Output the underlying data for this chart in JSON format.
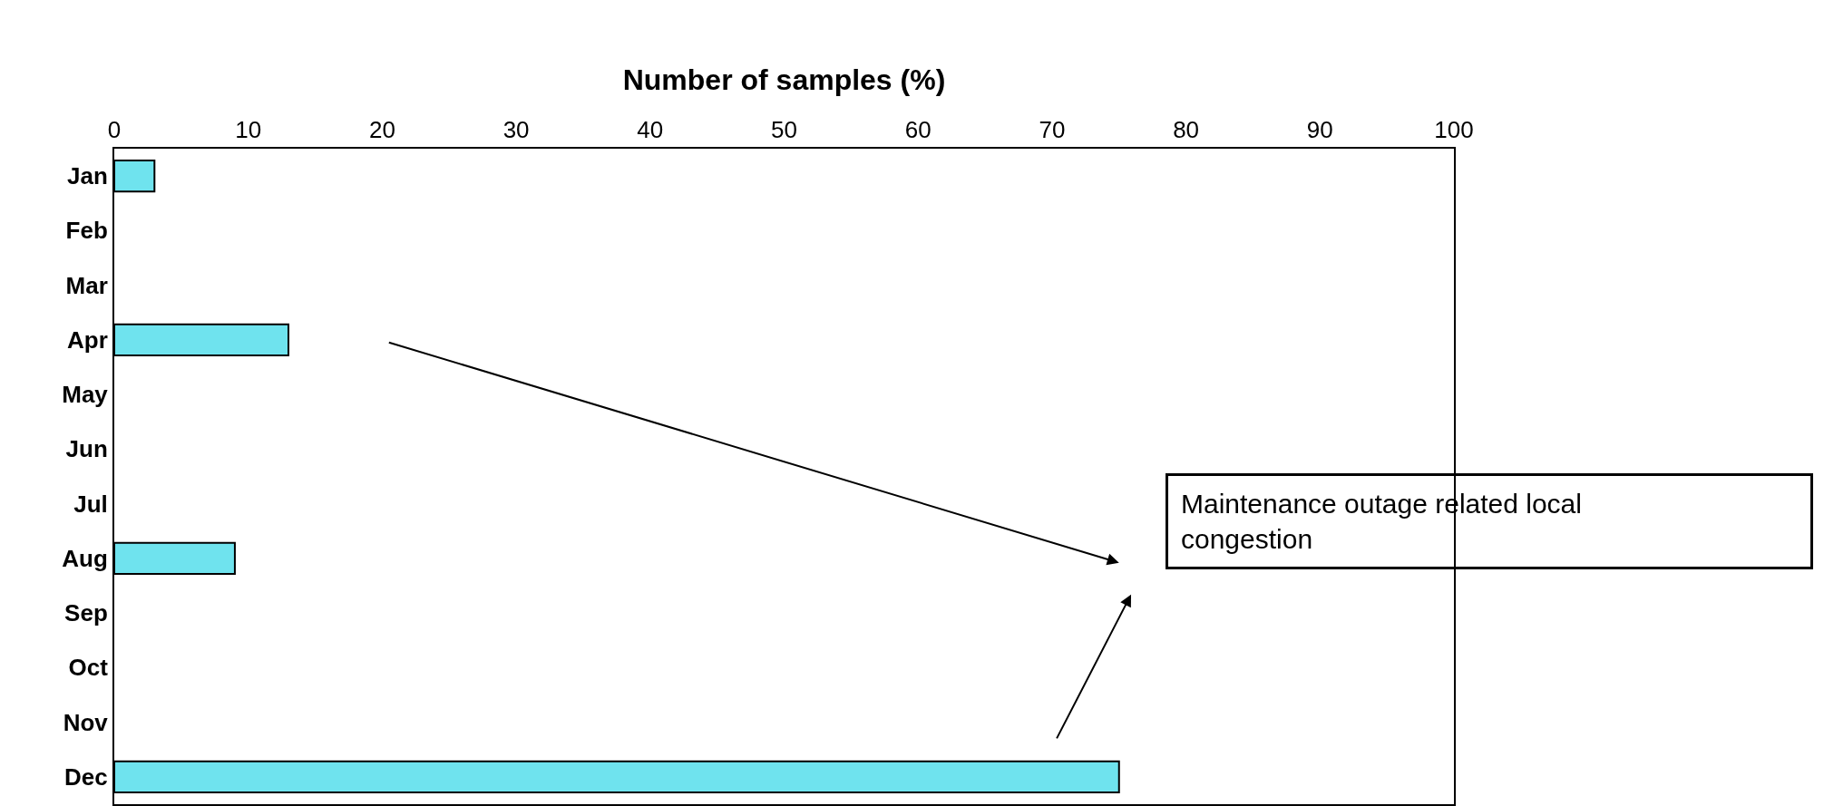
{
  "chart_data": {
    "type": "bar",
    "orientation": "horizontal",
    "xlabel": "Number of samples (%)",
    "categories": [
      "Jan",
      "Feb",
      "Mar",
      "Apr",
      "May",
      "Jun",
      "Jul",
      "Aug",
      "Sep",
      "Oct",
      "Nov",
      "Dec"
    ],
    "values": [
      3,
      null,
      null,
      13,
      null,
      null,
      null,
      9,
      null,
      null,
      null,
      75
    ],
    "color": "#6fe3ee",
    "xlim": [
      0,
      100
    ],
    "xticks": [
      0,
      10,
      20,
      30,
      40,
      50,
      60,
      70,
      80,
      90,
      100
    ],
    "legend": false,
    "annotations": [
      "Maintenance outage related local congestion"
    ]
  }
}
